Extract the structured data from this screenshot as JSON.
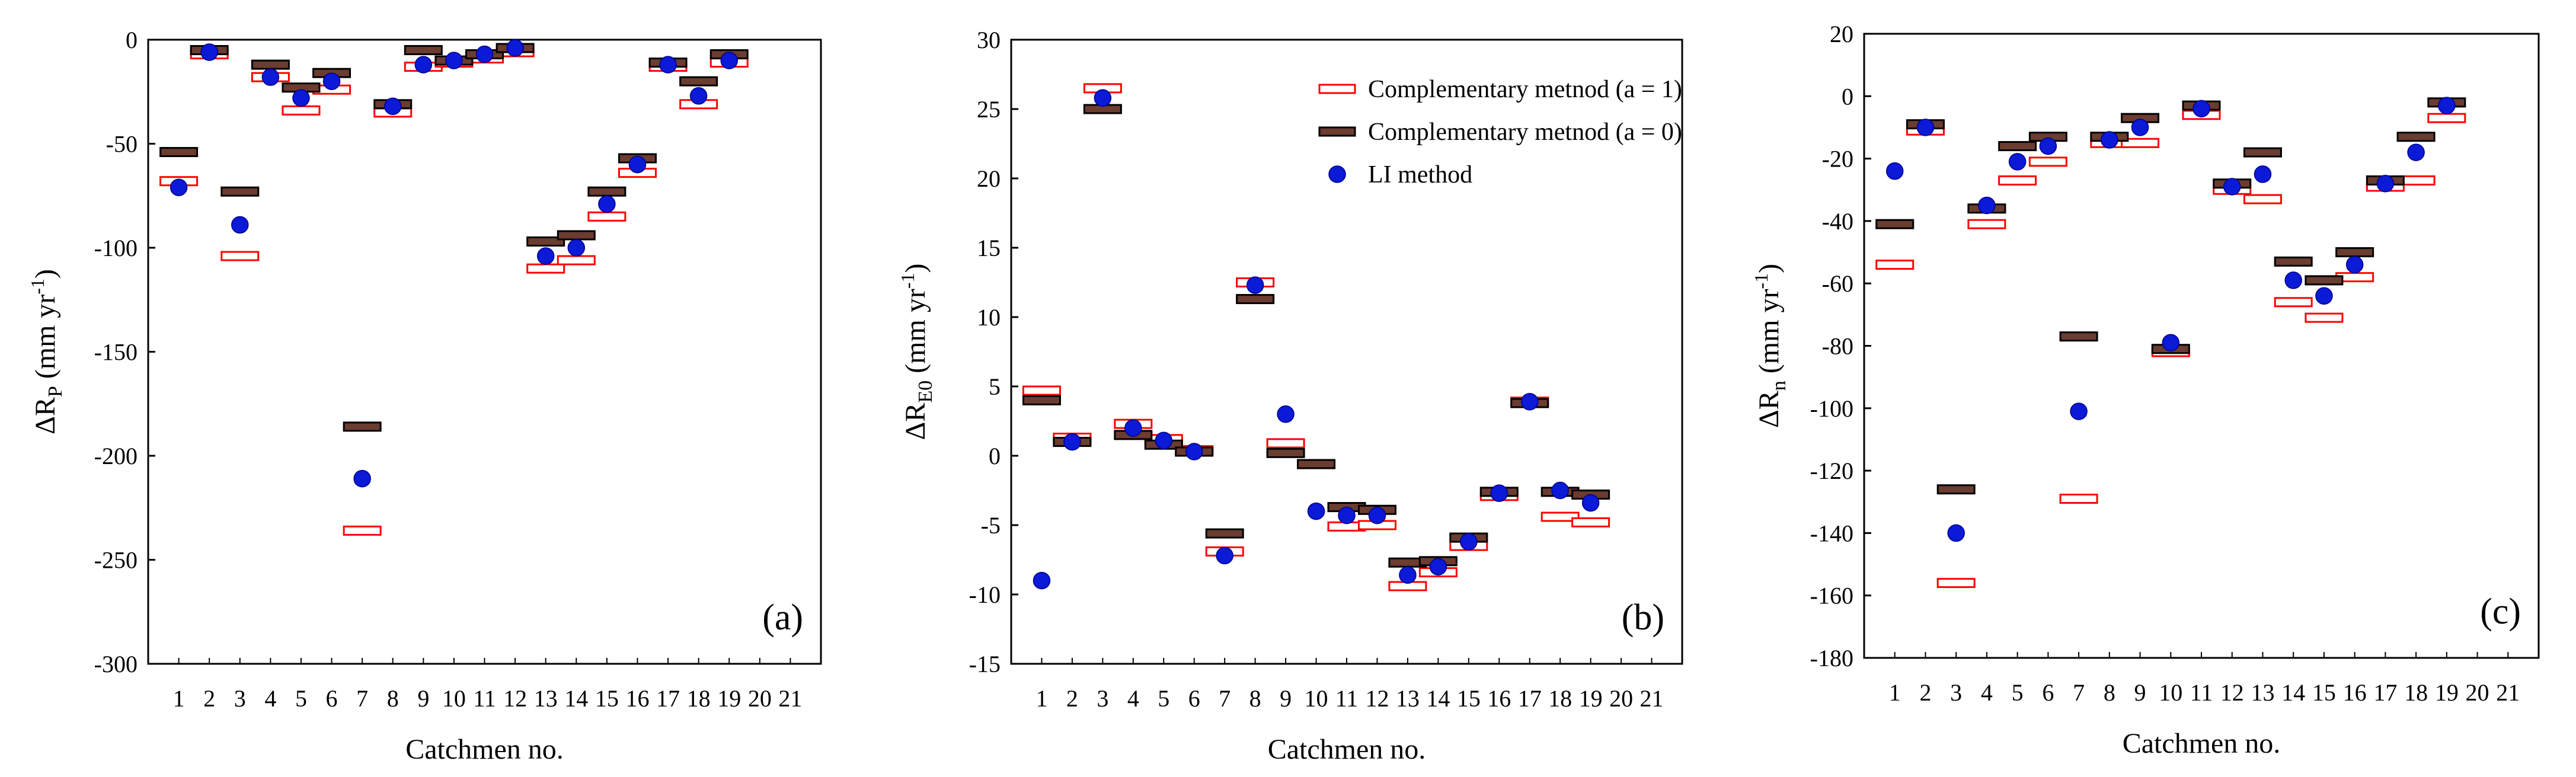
{
  "colors": {
    "a1_stroke": "#ff0000",
    "a0_fill": "#6b3c30",
    "a0_stroke": "#000000",
    "li_fill": "#0a1ad6",
    "li_stroke": "#00008b"
  },
  "legend": [
    {
      "key": "a1",
      "label": "Complementary metnod (a = 1)"
    },
    {
      "key": "a0",
      "label": "Complementary metnod (a = 0)"
    },
    {
      "key": "li",
      "label": "LI method"
    }
  ],
  "chart_data": [
    {
      "type": "scatter",
      "panel_label": "(a)",
      "xlabel": "Catchmen no.",
      "ylabel_main": "ΔR",
      "ylabel_sub": "P",
      "ylabel_units": " (mm yr",
      "ylabel_sup": "-1",
      "ylabel_close": ")",
      "ylim": [
        -300,
        0
      ],
      "yticks": [
        0,
        -50,
        -100,
        -150,
        -200,
        -250,
        -300
      ],
      "xticks": [
        "1",
        "2",
        "3",
        "4",
        "5",
        "6",
        "7",
        "8",
        "9",
        "10",
        "11",
        "12",
        "13",
        "14",
        "15",
        "16",
        "17",
        "18",
        "19",
        "20",
        "21"
      ],
      "legend": false,
      "series": [
        {
          "key": "a1",
          "name": "Complementary metnod (a = 1)",
          "values": [
            -68,
            -7,
            -104,
            -18,
            -34,
            -24,
            -236,
            -35,
            -13,
            -11,
            -9,
            -6,
            -110,
            -106,
            -85,
            -64,
            -13,
            -31,
            -11
          ]
        },
        {
          "key": "a0",
          "name": "Complementary metnod (a = 0)",
          "values": [
            -54,
            -5,
            -73,
            -12,
            -23,
            -16,
            -186,
            -31,
            -5,
            -10,
            -7,
            -4,
            -97,
            -94,
            -73,
            -57,
            -11,
            -20,
            -7
          ]
        },
        {
          "key": "li",
          "name": "LI method",
          "values": [
            -71,
            -6,
            -89,
            -18,
            -28,
            -20,
            -211,
            -32,
            -12,
            -10,
            -7,
            -4,
            -104,
            -100,
            -79,
            -60,
            -12,
            -27,
            -10
          ]
        }
      ]
    },
    {
      "type": "scatter",
      "panel_label": "(b)",
      "xlabel": "Catchmen no.",
      "ylabel_main": "ΔR",
      "ylabel_sub": "E0",
      "ylabel_units": "  (mm yr",
      "ylabel_sup": "-1",
      "ylabel_close": ")",
      "ylim": [
        -15,
        30
      ],
      "yticks": [
        30,
        25,
        20,
        15,
        10,
        5,
        0,
        -5,
        -10,
        -15
      ],
      "xticks": [
        "1",
        "2",
        "3",
        "4",
        "5",
        "6",
        "7",
        "8",
        "9",
        "10",
        "11",
        "12",
        "13",
        "14",
        "15",
        "16",
        "17",
        "18",
        "19",
        "20",
        "21"
      ],
      "legend": true,
      "series": [
        {
          "key": "a1",
          "name": "Complementary metnod (a = 1)",
          "values": [
            4.7,
            1.3,
            26.5,
            2.3,
            1.2,
            0.4,
            -6.9,
            12.5,
            0.9,
            -0.6,
            -5.1,
            -5.0,
            -9.4,
            -8.4,
            -6.5,
            -2.9,
            3.9,
            -4.4,
            -4.8
          ]
        },
        {
          "key": "a0",
          "name": "Complementary metnod (a = 0)",
          "values": [
            4.0,
            1.0,
            25.0,
            1.5,
            0.8,
            0.3,
            -5.6,
            11.3,
            0.2,
            -0.6,
            -3.7,
            -3.9,
            -7.7,
            -7.6,
            -5.9,
            -2.6,
            3.8,
            -2.6,
            -2.8
          ]
        },
        {
          "key": "li",
          "name": "LI method",
          "values": [
            -9.0,
            1.0,
            25.8,
            2.0,
            1.1,
            0.3,
            -7.2,
            12.3,
            3.0,
            -4.0,
            -4.3,
            -4.3,
            -8.6,
            -8.0,
            -6.2,
            -2.7,
            3.9,
            -2.5,
            -3.4
          ]
        }
      ]
    },
    {
      "type": "scatter",
      "panel_label": "(c)",
      "xlabel": "Catchmen no.",
      "ylabel_main": "ΔR",
      "ylabel_sub": "n",
      "ylabel_units": "  (mm yr",
      "ylabel_sup": "-1",
      "ylabel_close": ")",
      "ylim": [
        -180,
        20
      ],
      "yticks": [
        20,
        0,
        -20,
        -40,
        -60,
        -80,
        -100,
        -120,
        -140,
        -160,
        -180
      ],
      "xticks": [
        "1",
        "2",
        "3",
        "4",
        "5",
        "6",
        "7",
        "8",
        "9",
        "10",
        "11",
        "12",
        "13",
        "14",
        "15",
        "16",
        "17",
        "18",
        "19",
        "20",
        "21"
      ],
      "legend": false,
      "series": [
        {
          "key": "a1",
          "name": "Complementary metnod (a = 1)",
          "values": [
            -54,
            -11,
            -156,
            -41,
            -27,
            -21,
            -129,
            -15,
            -15,
            -82,
            -6,
            -30,
            -33,
            -66,
            -71,
            -58,
            -29,
            -27,
            -7
          ]
        },
        {
          "key": "a0",
          "name": "Complementary metnod (a = 0)",
          "values": [
            -41,
            -9,
            -126,
            -36,
            -16,
            -13,
            -77,
            -13,
            -7,
            -81,
            -3,
            -28,
            -18,
            -53,
            -59,
            -50,
            -27,
            -13,
            -2
          ]
        },
        {
          "key": "li",
          "name": "LI method",
          "values": [
            -24,
            -10,
            -140,
            -35,
            -21,
            -16,
            -101,
            -14,
            -10,
            -79,
            -4,
            -29,
            -25,
            -59,
            -64,
            -54,
            -28,
            -18,
            -3
          ]
        }
      ]
    }
  ]
}
